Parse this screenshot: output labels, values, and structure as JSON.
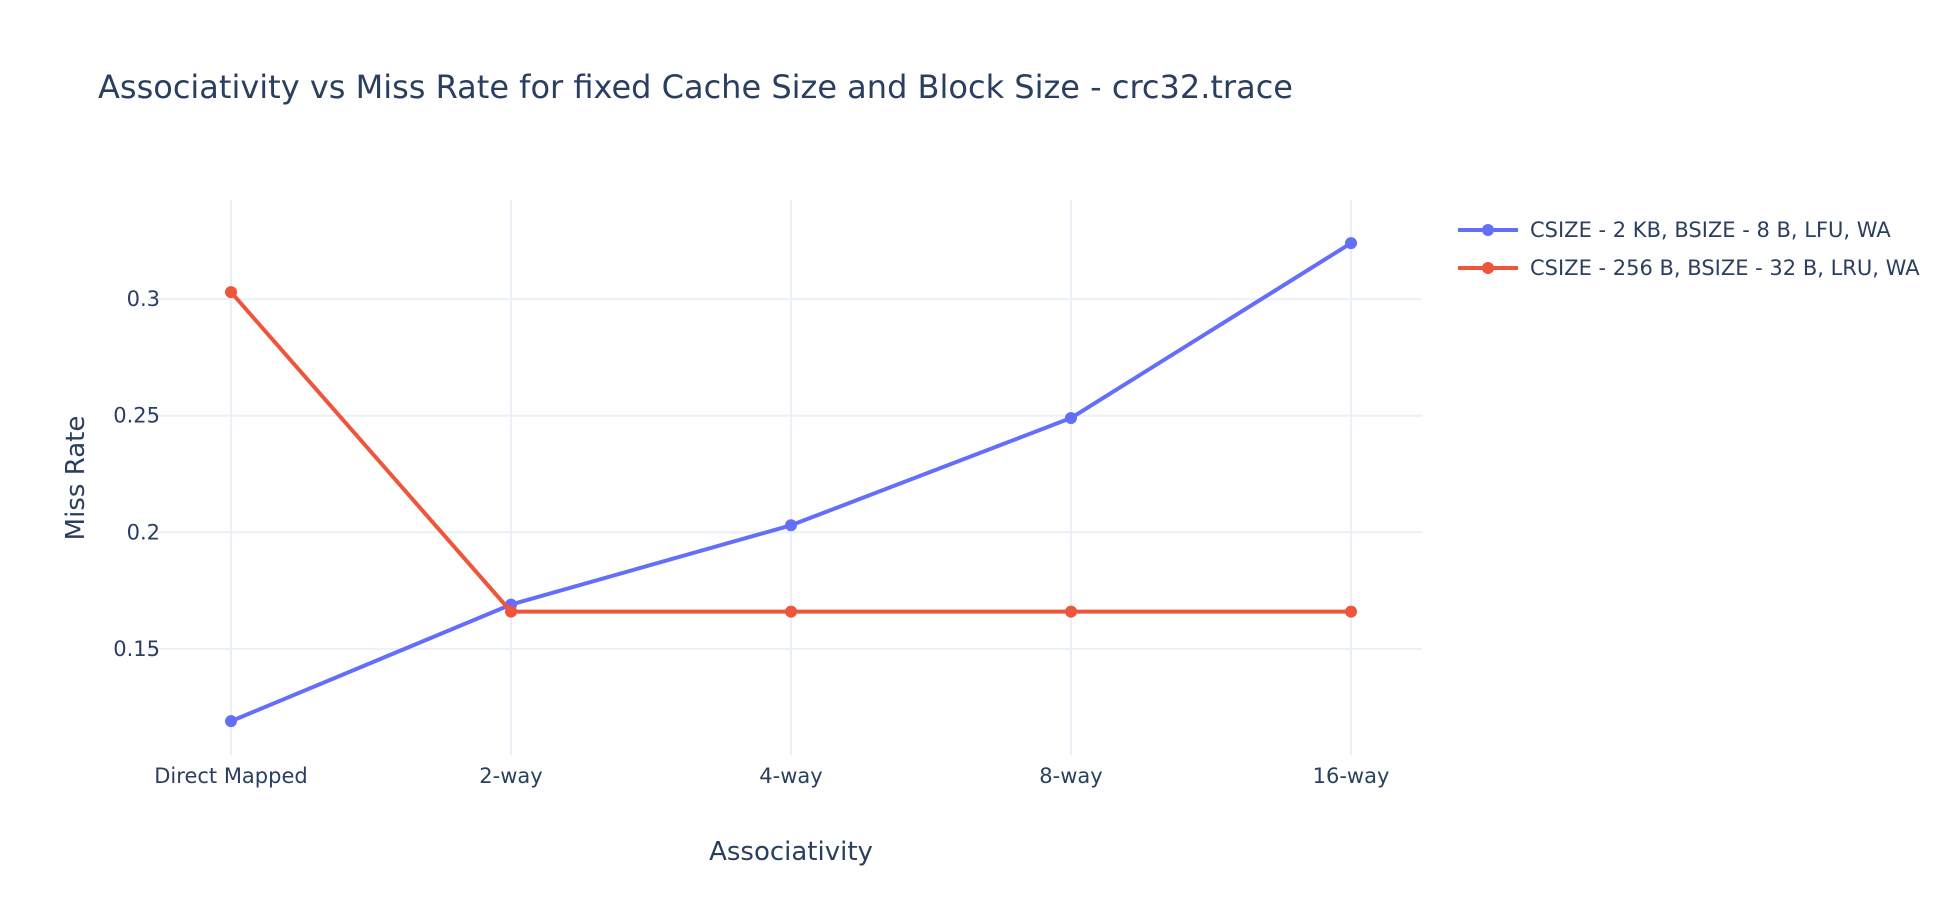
{
  "chart_data": {
    "type": "line",
    "title": "Associativity vs Miss Rate for fixed Cache Size and Block Size - crc32.trace",
    "xlabel": "Associativity",
    "ylabel": "Miss Rate",
    "categories": [
      "Direct Mapped",
      "2-way",
      "4-way",
      "8-way",
      "16-way"
    ],
    "ylim": [
      0.1045,
      0.3425
    ],
    "yticks": [
      0.15,
      0.2,
      0.25,
      0.3
    ],
    "ytick_labels": [
      "0.15",
      "0.2",
      "0.25",
      "0.3"
    ],
    "grid": true,
    "legend_position": "top-right",
    "series": [
      {
        "name": "CSIZE - 2 KB, BSIZE - 8 B, LFU, WA",
        "color": "#636efa",
        "values": [
          0.119,
          0.169,
          0.203,
          0.249,
          0.324
        ]
      },
      {
        "name": "CSIZE - 256 B, BSIZE - 32 B, LRU, WA",
        "color": "#ef553b",
        "values": [
          0.303,
          0.166,
          0.166,
          0.166,
          0.166
        ]
      }
    ]
  }
}
